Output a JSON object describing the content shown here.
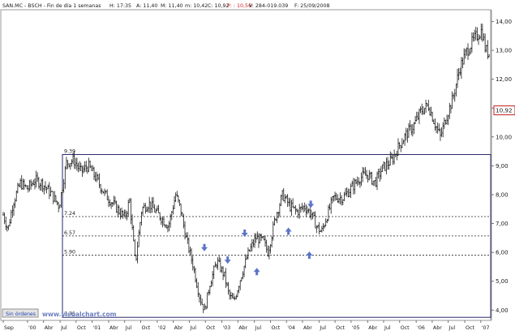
{
  "header": {
    "symbol": "SAN.MC - BSCH - Fin de día 1 semanas",
    "h_label": "H: 17:35",
    "a_label": "A: 11,40",
    "max_label": "M: 11,40",
    "min_label": "m: 10,42",
    "close_label": "C: 10,92",
    "pct_label": "P: : 10,56",
    "vol_label": "V: 284-019.039",
    "date_label": "F: 25/09/2008"
  },
  "footer": {
    "button_label": "Sin órdenes",
    "watermark": "www.visualchart.com"
  },
  "colors": {
    "candle": "#1a1a1a",
    "frame": "#2a2a6e",
    "arrow": "#5b74c8",
    "watermark": "#6b7fbf",
    "price_label_border": "#c41e1e"
  },
  "chart_data": {
    "type": "candlestick",
    "ylim": [
      3.7,
      14.35
    ],
    "y_ticks": [
      4.0,
      5.0,
      6.0,
      7.0,
      8.0,
      9.0,
      10.0,
      11.0,
      12.0,
      13.0,
      14.0
    ],
    "y_tick_labels": [
      "4,00",
      "5,00",
      "6,00",
      "7,00",
      "8,00",
      "9,00",
      "10,00",
      "11,00",
      "12,00",
      "13,00",
      "14,00"
    ],
    "last_price_label": "10,92",
    "last_price": 10.92,
    "x_ticks": [
      {
        "label": "Sep",
        "t": 0.0
      },
      {
        "label": "'00",
        "t": 0.05
      },
      {
        "label": "Abr",
        "t": 0.083
      },
      {
        "label": "Jul",
        "t": 0.117
      },
      {
        "label": "Oct",
        "t": 0.15
      },
      {
        "label": "'01",
        "t": 0.183
      },
      {
        "label": "Abr",
        "t": 0.217
      },
      {
        "label": "Jul",
        "t": 0.25
      },
      {
        "label": "Oct",
        "t": 0.283
      },
      {
        "label": "'02",
        "t": 0.317
      },
      {
        "label": "Abr",
        "t": 0.35
      },
      {
        "label": "Jul",
        "t": 0.383
      },
      {
        "label": "Oct",
        "t": 0.416
      },
      {
        "label": "'03",
        "t": 0.45
      },
      {
        "label": "Abr",
        "t": 0.483
      },
      {
        "label": "Jul",
        "t": 0.517
      },
      {
        "label": "Oct",
        "t": 0.55
      },
      {
        "label": "'04",
        "t": 0.583
      },
      {
        "label": "Abr",
        "t": 0.616
      },
      {
        "label": "Jul",
        "t": 0.65
      },
      {
        "label": "Oct",
        "t": 0.683
      },
      {
        "label": "'05",
        "t": 0.716
      },
      {
        "label": "Abr",
        "t": 0.75
      },
      {
        "label": "Jul",
        "t": 0.783
      },
      {
        "label": "Oct",
        "t": 0.816
      },
      {
        "label": "'06",
        "t": 0.85
      },
      {
        "label": "Abr",
        "t": 0.883
      },
      {
        "label": "Jul",
        "t": 0.916
      },
      {
        "label": "Oct",
        "t": 0.95
      },
      {
        "label": "'07",
        "t": 0.983
      }
    ],
    "anchors": [
      [
        0.0,
        7.3
      ],
      [
        0.01,
        6.8
      ],
      [
        0.02,
        7.7
      ],
      [
        0.035,
        8.4
      ],
      [
        0.05,
        8.2
      ],
      [
        0.065,
        8.5
      ],
      [
        0.08,
        8.4
      ],
      [
        0.1,
        8.0
      ],
      [
        0.115,
        7.6
      ],
      [
        0.13,
        9.1
      ],
      [
        0.145,
        9.2
      ],
      [
        0.16,
        8.8
      ],
      [
        0.175,
        9.0
      ],
      [
        0.19,
        8.6
      ],
      [
        0.21,
        8.0
      ],
      [
        0.23,
        7.6
      ],
      [
        0.25,
        7.2
      ],
      [
        0.26,
        7.8
      ],
      [
        0.272,
        5.6
      ],
      [
        0.285,
        7.5
      ],
      [
        0.3,
        7.7
      ],
      [
        0.32,
        7.3
      ],
      [
        0.34,
        6.9
      ],
      [
        0.355,
        8.0
      ],
      [
        0.365,
        7.5
      ],
      [
        0.375,
        6.6
      ],
      [
        0.39,
        5.6
      ],
      [
        0.405,
        4.4
      ],
      [
        0.415,
        4.0
      ],
      [
        0.425,
        4.9
      ],
      [
        0.44,
        5.7
      ],
      [
        0.455,
        5.2
      ],
      [
        0.465,
        4.5
      ],
      [
        0.475,
        4.3
      ],
      [
        0.49,
        5.2
      ],
      [
        0.505,
        6.0
      ],
      [
        0.52,
        6.5
      ],
      [
        0.535,
        6.4
      ],
      [
        0.545,
        6.0
      ],
      [
        0.56,
        7.2
      ],
      [
        0.575,
        8.0
      ],
      [
        0.59,
        7.6
      ],
      [
        0.605,
        7.4
      ],
      [
        0.62,
        7.6
      ],
      [
        0.635,
        7.3
      ],
      [
        0.645,
        6.9
      ],
      [
        0.655,
        6.7
      ],
      [
        0.665,
        7.2
      ],
      [
        0.68,
        7.9
      ],
      [
        0.7,
        7.9
      ],
      [
        0.72,
        8.3
      ],
      [
        0.735,
        8.6
      ],
      [
        0.75,
        8.7
      ],
      [
        0.765,
        8.4
      ],
      [
        0.78,
        8.9
      ],
      [
        0.8,
        9.2
      ],
      [
        0.815,
        9.7
      ],
      [
        0.83,
        10.1
      ],
      [
        0.845,
        10.4
      ],
      [
        0.86,
        10.9
      ],
      [
        0.875,
        11.1
      ],
      [
        0.89,
        10.4
      ],
      [
        0.9,
        10.0
      ],
      [
        0.91,
        10.6
      ],
      [
        0.925,
        11.3
      ],
      [
        0.94,
        12.4
      ],
      [
        0.955,
        13.0
      ],
      [
        0.97,
        13.4
      ],
      [
        0.985,
        13.7
      ],
      [
        0.993,
        13.0
      ],
      [
        1.0,
        12.9
      ]
    ],
    "levels": [
      {
        "label": "9.39",
        "value": 9.39,
        "style": "solid"
      },
      {
        "label": "7.24",
        "value": 7.24,
        "style": "dashed"
      },
      {
        "label": "6.57",
        "value": 6.57,
        "style": "dashed"
      },
      {
        "label": "5.90",
        "value": 5.9,
        "style": "dashed"
      },
      {
        "label": "3.75",
        "value": 3.75,
        "style": "solid"
      }
    ],
    "arrows": [
      {
        "t": 0.414,
        "price": 6.15,
        "dir": "down"
      },
      {
        "t": 0.462,
        "price": 5.72,
        "dir": "down"
      },
      {
        "t": 0.497,
        "price": 6.65,
        "dir": "down"
      },
      {
        "t": 0.522,
        "price": 5.35,
        "dir": "up"
      },
      {
        "t": 0.587,
        "price": 6.75,
        "dir": "up"
      },
      {
        "t": 0.633,
        "price": 7.65,
        "dir": "down"
      },
      {
        "t": 0.63,
        "price": 5.92,
        "dir": "up"
      }
    ]
  }
}
